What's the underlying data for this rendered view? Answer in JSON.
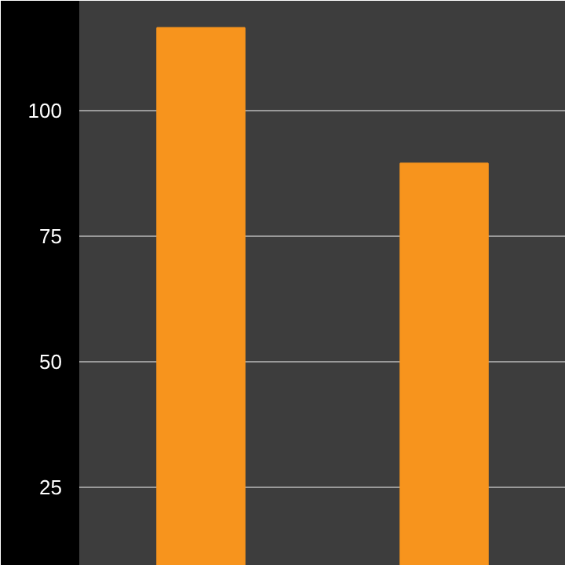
{
  "chart_data": {
    "type": "bar",
    "categories": [
      null,
      null
    ],
    "values": [
      116.5,
      89.5
    ],
    "color": "#f7941d",
    "ylim": [
      9.4,
      121.9
    ],
    "yticks": [
      25,
      50,
      75,
      100
    ],
    "grid": "y",
    "tick_labels": "y"
  }
}
